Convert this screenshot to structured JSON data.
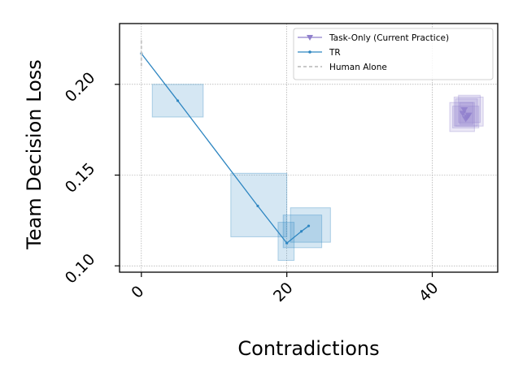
{
  "chart_data": {
    "type": "line",
    "title": "",
    "xlabel": "Contradictions",
    "ylabel": "Team Decision Loss",
    "xlim": [
      -3,
      49
    ],
    "ylim": [
      0.0965,
      0.2335
    ],
    "x_ticks": [
      0,
      20,
      40
    ],
    "x_tick_labels": [
      "0",
      "20",
      "40"
    ],
    "y_ticks": [
      0.1,
      0.15,
      0.2
    ],
    "y_tick_labels": [
      "0.10",
      "0.15",
      "0.20"
    ],
    "grid": true,
    "legend_position": "top-right",
    "series": [
      {
        "name": "Task-Only (Current Practice)",
        "color": "#9080cc",
        "marker": "triangle-down",
        "points": [
          [
            44.2,
            0.184
          ],
          [
            44.6,
            0.181
          ],
          [
            45.0,
            0.183
          ],
          [
            44.4,
            0.186
          ],
          [
            44.8,
            0.182
          ]
        ],
        "boxes": [
          [
            43.8,
            45.6,
            0.178,
            0.19
          ],
          [
            43.2,
            46.2,
            0.177,
            0.192
          ],
          [
            42.8,
            46.4,
            0.176,
            0.188
          ],
          [
            42.4,
            45.8,
            0.174,
            0.19
          ],
          [
            43.0,
            47.0,
            0.177,
            0.193
          ],
          [
            43.6,
            46.6,
            0.179,
            0.194
          ]
        ]
      },
      {
        "name": "TR",
        "color": "#2e86c1",
        "marker": "dot",
        "points": [
          [
            0,
            0.217
          ],
          [
            5,
            0.191
          ],
          [
            16,
            0.133
          ],
          [
            20,
            0.1125
          ],
          [
            22,
            0.119
          ],
          [
            23,
            0.122
          ]
        ],
        "boxes": [
          [
            1.5,
            8.5,
            0.182,
            0.2
          ],
          [
            12.3,
            20.0,
            0.116,
            0.151
          ],
          [
            18.8,
            21.0,
            0.103,
            0.124
          ],
          [
            19.5,
            24.8,
            0.11,
            0.128
          ],
          [
            20.5,
            26.0,
            0.113,
            0.132
          ]
        ]
      },
      {
        "name": "Human Alone",
        "color": "#c8c8c8",
        "style": "dashed",
        "points": [
          [
            0,
            0.21
          ],
          [
            0,
            0.225
          ]
        ]
      }
    ]
  }
}
